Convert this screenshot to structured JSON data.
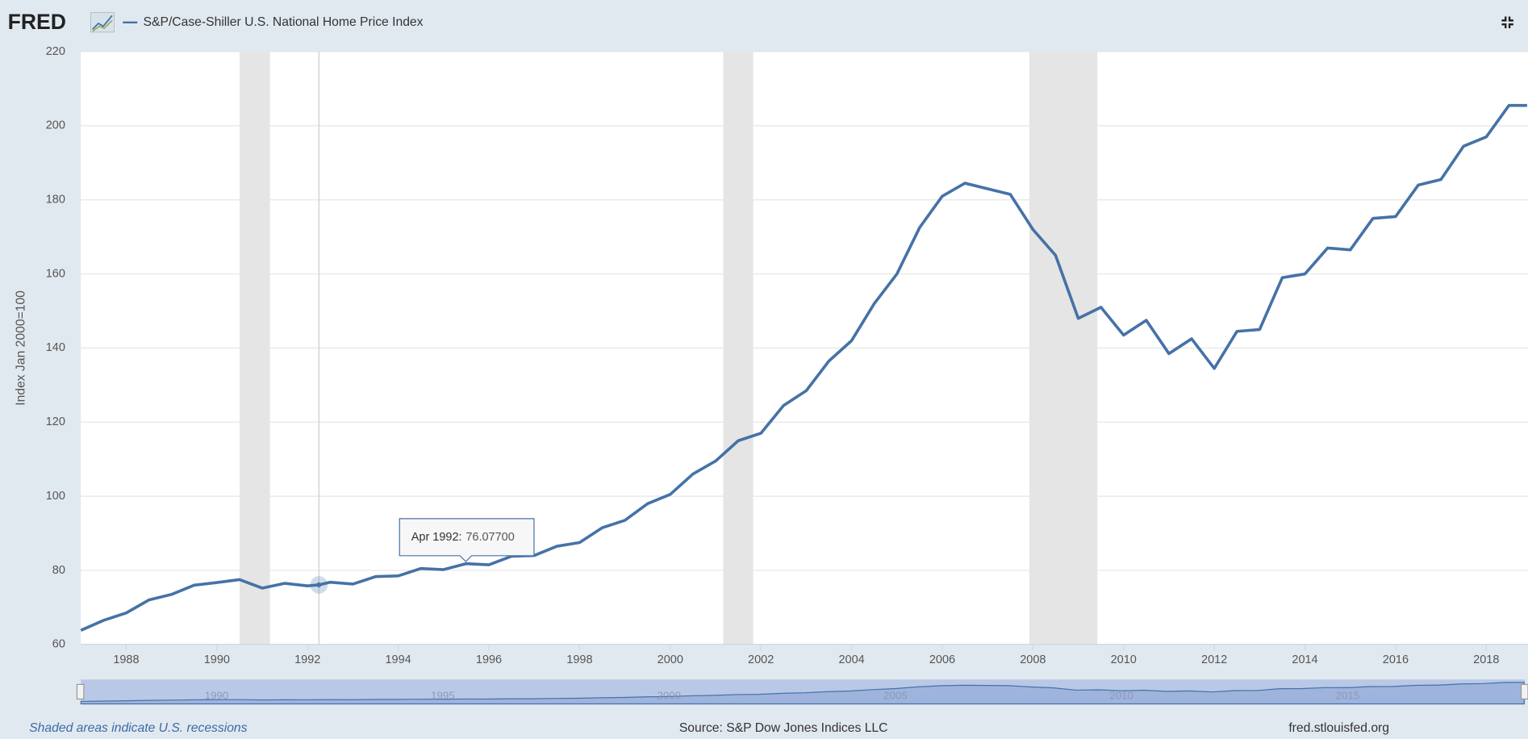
{
  "logo": "FRED",
  "chart_data": {
    "type": "line",
    "ylabel": "Index Jan 2000=100",
    "x": [
      1987.0,
      1987.5,
      1988.0,
      1988.5,
      1989.0,
      1989.5,
      1990.0,
      1990.5,
      1991.0,
      1991.5,
      1992.0,
      1992.25,
      1992.5,
      1993.0,
      1993.5,
      1994.0,
      1994.5,
      1995.0,
      1995.5,
      1996.0,
      1996.5,
      1997.0,
      1997.5,
      1998.0,
      1998.5,
      1999.0,
      1999.5,
      2000.0,
      2000.5,
      2001.0,
      2001.5,
      2002.0,
      2002.5,
      2003.0,
      2003.5,
      2004.0,
      2004.5,
      2005.0,
      2005.5,
      2006.0,
      2006.5,
      2007.0,
      2007.5,
      2008.0,
      2008.5,
      2009.0,
      2009.5,
      2010.0,
      2010.5,
      2011.0,
      2011.5,
      2012.0,
      2012.5,
      2013.0,
      2013.5,
      2014.0,
      2014.5,
      2015.0,
      2015.5,
      2016.0,
      2016.5,
      2017.0,
      2017.5,
      2018.0,
      2018.5,
      2018.9
    ],
    "series": [
      {
        "name": "S&P/Case-Shiller U.S. National Home Price Index",
        "color": "#4572a7",
        "values": [
          63.8,
          66.5,
          68.5,
          72,
          73.5,
          76,
          76.7,
          77.5,
          75.2,
          76.5,
          75.8,
          76.077,
          76.8,
          76.3,
          78.3,
          78.5,
          80.5,
          80.2,
          81.8,
          81.5,
          83.8,
          84,
          86.5,
          87.5,
          91.5,
          93.5,
          98,
          100.5,
          106,
          109.5,
          115,
          117,
          124.5,
          128.5,
          136.5,
          142,
          152,
          160,
          172.5,
          181,
          184.5,
          183,
          181.5,
          172,
          165,
          148,
          151,
          143.5,
          147.5,
          138.5,
          142.5,
          134.5,
          144.5,
          145,
          159,
          160,
          167,
          166.5,
          175,
          175.5,
          184,
          185.5,
          194.5,
          197,
          205.5,
          205.5
        ]
      }
    ],
    "xlim": [
      1987.0,
      2018.92
    ],
    "xticks": [
      1988,
      1990,
      1992,
      1994,
      1996,
      1998,
      2000,
      2002,
      2004,
      2006,
      2008,
      2010,
      2012,
      2014,
      2016,
      2018
    ],
    "ylim": [
      60,
      220
    ],
    "yticks": [
      60,
      80,
      100,
      120,
      140,
      160,
      180,
      200,
      220
    ],
    "grid": true,
    "recessions": [
      [
        1990.5,
        1991.17
      ],
      [
        2001.17,
        2001.83
      ],
      [
        2007.92,
        2009.42
      ]
    ],
    "tooltip": {
      "x": 1992.25,
      "value": 76.077,
      "label": "Apr 1992:",
      "value_label": "76.07700"
    },
    "navigator_ticks": [
      1990,
      1995,
      2000,
      2005,
      2010,
      2015
    ],
    "note": "Shaded areas indicate U.S. recessions",
    "source": "Source: S&P Dow Jones Indices LLC",
    "url": "fred.stlouisfed.org"
  }
}
